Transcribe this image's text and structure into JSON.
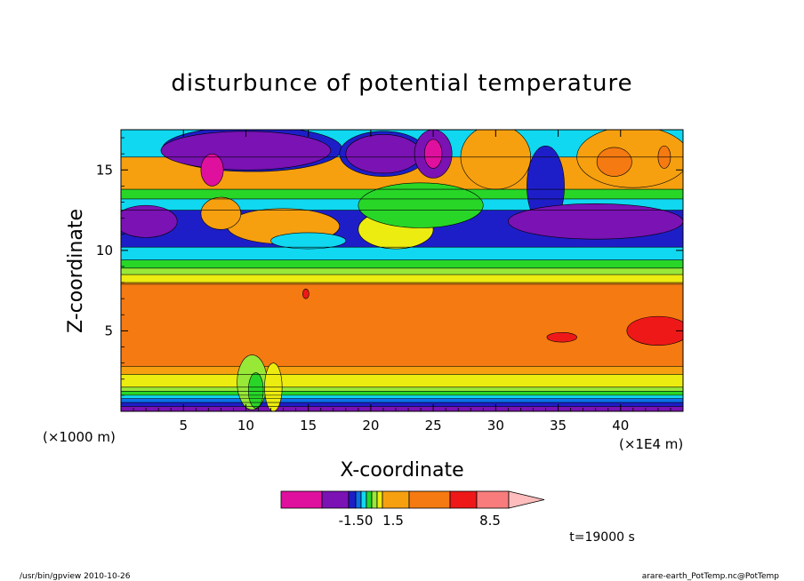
{
  "chart_data": {
    "type": "heatmap",
    "title": "disturbunce of potential temperature",
    "xlabel": "X-coordinate",
    "ylabel": "Z-coordinate",
    "x_unit_left": "(×1000 m)",
    "x_unit_right": "(×1E4 m)",
    "xlim": [
      0,
      45
    ],
    "ylim": [
      0,
      17.5
    ],
    "x_ticks": [
      5,
      10,
      15,
      20,
      25,
      30,
      35,
      40
    ],
    "y_ticks": [
      5,
      10,
      15
    ],
    "time_label": "t=19000 s",
    "colorbar": {
      "colors": [
        "#e0109e",
        "#7a12b4",
        "#1e1ec8",
        "#0a70e8",
        "#10d8f0",
        "#28d628",
        "#98e838",
        "#ecec10",
        "#f6a010",
        "#f57a12",
        "#ee1818",
        "#f87c7c",
        "#ffbcbc"
      ],
      "labels": [
        "-1.50",
        "1.5",
        "8.5"
      ]
    },
    "bands": [
      {
        "from": 0.0,
        "to": 0.3,
        "color": "#7a12b4"
      },
      {
        "from": 0.3,
        "to": 0.55,
        "color": "#1e1ec8"
      },
      {
        "from": 0.55,
        "to": 0.8,
        "color": "#0a70e8"
      },
      {
        "from": 0.8,
        "to": 1.0,
        "color": "#10d8f0"
      },
      {
        "from": 1.0,
        "to": 1.25,
        "color": "#28d628"
      },
      {
        "from": 1.25,
        "to": 1.5,
        "color": "#98e838"
      },
      {
        "from": 1.5,
        "to": 2.3,
        "color": "#ecec10"
      },
      {
        "from": 2.3,
        "to": 8.0,
        "color": "#f6a010"
      },
      {
        "from": 8.0,
        "to": 8.5,
        "color": "#ecec10"
      },
      {
        "from": 8.5,
        "to": 8.9,
        "color": "#98e838"
      },
      {
        "from": 8.9,
        "to": 9.4,
        "color": "#28d628"
      },
      {
        "from": 9.4,
        "to": 10.2,
        "color": "#10d8f0"
      },
      {
        "from": 10.2,
        "to": 12.5,
        "color": "#1e1ec8"
      },
      {
        "from": 12.5,
        "to": 13.2,
        "color": "#10d8f0"
      },
      {
        "from": 13.2,
        "to": 13.8,
        "color": "#28d628"
      },
      {
        "from": 13.8,
        "to": 15.8,
        "color": "#f6a010"
      },
      {
        "from": 15.8,
        "to": 17.5,
        "color": "#10d8f0"
      }
    ],
    "blobs": [
      {
        "shape": "rect",
        "x0": 0,
        "x1": 45,
        "y0": 2.8,
        "y1": 7.9,
        "color": "#f57a12"
      },
      {
        "shape": "ellipse",
        "cx": 43,
        "cy": 5.0,
        "rx": 2.5,
        "ry": 0.9,
        "color": "#ee1818"
      },
      {
        "shape": "ellipse",
        "cx": 35.3,
        "cy": 4.6,
        "rx": 1.2,
        "ry": 0.3,
        "color": "#ee1818"
      },
      {
        "shape": "ellipse",
        "cx": 14.8,
        "cy": 7.3,
        "rx": 0.25,
        "ry": 0.3,
        "color": "#ee1818"
      },
      {
        "shape": "ellipse",
        "cx": 10.5,
        "cy": 16.3,
        "rx": 7.2,
        "ry": 1.4,
        "color": "#1e1ec8"
      },
      {
        "shape": "ellipse",
        "cx": 10.0,
        "cy": 16.2,
        "rx": 6.8,
        "ry": 1.2,
        "color": "#7a12b4"
      },
      {
        "shape": "ellipse",
        "cx": 21.0,
        "cy": 16.0,
        "rx": 3.5,
        "ry": 1.4,
        "color": "#1e1ec8"
      },
      {
        "shape": "ellipse",
        "cx": 21.0,
        "cy": 16.0,
        "rx": 3.0,
        "ry": 1.2,
        "color": "#7a12b4"
      },
      {
        "shape": "ellipse",
        "cx": 7.3,
        "cy": 15.0,
        "rx": 0.9,
        "ry": 1.0,
        "color": "#e0109e"
      },
      {
        "shape": "ellipse",
        "cx": 25.0,
        "cy": 16.0,
        "rx": 1.5,
        "ry": 1.5,
        "color": "#7a12b4"
      },
      {
        "shape": "ellipse",
        "cx": 25.0,
        "cy": 16.0,
        "rx": 0.7,
        "ry": 0.9,
        "color": "#e0109e"
      },
      {
        "shape": "ellipse",
        "cx": 30.0,
        "cy": 15.8,
        "rx": 2.8,
        "ry": 2.0,
        "color": "#f6a010"
      },
      {
        "shape": "ellipse",
        "cx": 41.0,
        "cy": 15.8,
        "rx": 4.5,
        "ry": 1.9,
        "color": "#f6a010"
      },
      {
        "shape": "ellipse",
        "cx": 39.5,
        "cy": 15.5,
        "rx": 1.4,
        "ry": 0.9,
        "color": "#f57a12"
      },
      {
        "shape": "ellipse",
        "cx": 43.5,
        "cy": 15.8,
        "rx": 0.5,
        "ry": 0.7,
        "color": "#f57a12"
      },
      {
        "shape": "ellipse",
        "cx": 34.0,
        "cy": 14.0,
        "rx": 1.5,
        "ry": 2.5,
        "color": "#1e1ec8"
      },
      {
        "shape": "ellipse",
        "cx": 38.0,
        "cy": 11.8,
        "rx": 7.0,
        "ry": 1.1,
        "color": "#7a12b4"
      },
      {
        "shape": "ellipse",
        "cx": 2.0,
        "cy": 11.8,
        "rx": 2.5,
        "ry": 1.0,
        "color": "#7a12b4"
      },
      {
        "shape": "ellipse",
        "cx": 13.0,
        "cy": 11.5,
        "rx": 4.5,
        "ry": 1.1,
        "color": "#f6a010"
      },
      {
        "shape": "ellipse",
        "cx": 8.0,
        "cy": 12.3,
        "rx": 1.6,
        "ry": 1.0,
        "color": "#f6a010"
      },
      {
        "shape": "ellipse",
        "cx": 22.0,
        "cy": 11.3,
        "rx": 3.0,
        "ry": 1.2,
        "color": "#ecec10"
      },
      {
        "shape": "ellipse",
        "cx": 26.0,
        "cy": 12.5,
        "rx": 1.0,
        "ry": 0.8,
        "color": "#ecec10"
      },
      {
        "shape": "ellipse",
        "cx": 15.0,
        "cy": 10.6,
        "rx": 3.0,
        "ry": 0.5,
        "color": "#10d8f0"
      },
      {
        "shape": "ellipse",
        "cx": 24.0,
        "cy": 12.8,
        "rx": 5.0,
        "ry": 1.4,
        "color": "#28d628"
      },
      {
        "shape": "ellipse",
        "cx": 10.5,
        "cy": 1.8,
        "rx": 1.2,
        "ry": 1.7,
        "color": "#98e838"
      },
      {
        "shape": "ellipse",
        "cx": 10.8,
        "cy": 1.3,
        "rx": 0.6,
        "ry": 1.1,
        "color": "#28d628"
      },
      {
        "shape": "ellipse",
        "cx": 12.2,
        "cy": 1.5,
        "rx": 0.7,
        "ry": 1.5,
        "color": "#ecec10"
      }
    ]
  },
  "footer": {
    "left": "/usr/bin/gpview   2010-10-26",
    "right": "arare-earth_PotTemp.nc@PotTemp"
  }
}
